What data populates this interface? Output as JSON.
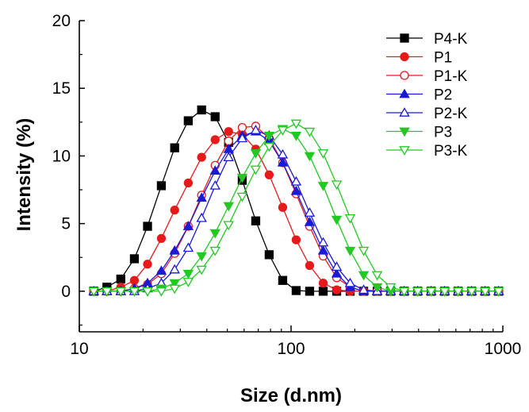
{
  "chart_data": {
    "type": "line",
    "xlabel": "Size (d.nm)",
    "ylabel": "Intensity (%)",
    "xscale": "log",
    "xlim": [
      10,
      1000
    ],
    "ylim": [
      -3,
      20
    ],
    "xticks": [
      10,
      100,
      1000
    ],
    "yticks": [
      0,
      5,
      10,
      15,
      20
    ],
    "grid": false,
    "legend_position": "top-right",
    "x": [
      11.7,
      13.5,
      15.7,
      18.2,
      21.0,
      24.4,
      28.2,
      32.7,
      37.8,
      43.8,
      50.7,
      58.8,
      68.1,
      78.8,
      91.3,
      105.7,
      122.4,
      141.8,
      164.2,
      190.1,
      220.2,
      255.0,
      295.3,
      342.0,
      396.1,
      458.7,
      531.2,
      615.1,
      712.4,
      825.0,
      955.4
    ],
    "series": [
      {
        "name": "P4-K",
        "color": "#000000",
        "marker": "square-filled",
        "values": [
          0,
          0.3,
          0.9,
          2.4,
          4.8,
          7.8,
          10.6,
          12.6,
          13.4,
          12.9,
          11.0,
          8.2,
          5.2,
          2.7,
          0.8,
          0.05,
          0,
          0,
          0,
          0,
          0,
          0,
          0,
          0,
          0,
          0,
          0,
          0,
          0,
          0,
          0
        ]
      },
      {
        "name": "P1",
        "color": "#e8191b",
        "marker": "circle-filled",
        "values": [
          0,
          0,
          0.3,
          0.8,
          2.0,
          3.9,
          6.0,
          8.0,
          9.9,
          11.2,
          11.8,
          11.6,
          10.5,
          8.6,
          6.2,
          3.8,
          1.9,
          0.6,
          0.1,
          0,
          0,
          0,
          0,
          0,
          0,
          0,
          0,
          0,
          0,
          0,
          0
        ]
      },
      {
        "name": "P1-K",
        "color": "#e8191b",
        "marker": "circle-open",
        "values": [
          0,
          0,
          0,
          0.2,
          0.5,
          1.3,
          2.8,
          4.8,
          7.1,
          9.3,
          11.1,
          12.1,
          12.2,
          11.3,
          9.5,
          7.2,
          4.8,
          2.6,
          1.0,
          0.3,
          0,
          0,
          0,
          0,
          0,
          0,
          0,
          0,
          0,
          0,
          0
        ]
      },
      {
        "name": "P2",
        "color": "#1a1ad6",
        "marker": "triangle-up-filled",
        "values": [
          0,
          0,
          0,
          0.2,
          0.6,
          1.5,
          3.0,
          4.8,
          6.9,
          8.9,
          10.5,
          11.5,
          11.8,
          11.1,
          9.5,
          7.4,
          5.1,
          3.0,
          1.3,
          0.3,
          0,
          0,
          0,
          0,
          0,
          0,
          0,
          0,
          0,
          0,
          0
        ]
      },
      {
        "name": "P2-K",
        "color": "#1a1ad6",
        "marker": "triangle-up-open",
        "values": [
          0,
          0,
          0,
          0,
          0.2,
          0.6,
          1.6,
          3.2,
          5.4,
          7.8,
          9.9,
          11.3,
          11.9,
          11.5,
          10.1,
          8.1,
          5.8,
          3.6,
          1.8,
          0.6,
          0.1,
          0,
          0,
          0,
          0,
          0,
          0,
          0,
          0,
          0,
          0
        ]
      },
      {
        "name": "P3",
        "color": "#22c922",
        "marker": "triangle-down-filled",
        "values": [
          0,
          0,
          0,
          0,
          0,
          0.2,
          0.6,
          1.3,
          2.6,
          4.3,
          6.3,
          8.4,
          10.2,
          11.5,
          12.0,
          11.5,
          10.0,
          7.8,
          5.3,
          3.0,
          1.2,
          0.3,
          0,
          0,
          0,
          0,
          0,
          0,
          0,
          0,
          0
        ]
      },
      {
        "name": "P3-K",
        "color": "#22c922",
        "marker": "triangle-down-open",
        "values": [
          0,
          0,
          0,
          0,
          0,
          0,
          0.2,
          0.7,
          1.6,
          3.0,
          4.9,
          7.0,
          9.0,
          10.7,
          11.9,
          12.4,
          11.8,
          10.2,
          7.9,
          5.4,
          3.0,
          1.2,
          0.3,
          0,
          0,
          0,
          0,
          0,
          0,
          0,
          0
        ]
      }
    ]
  }
}
